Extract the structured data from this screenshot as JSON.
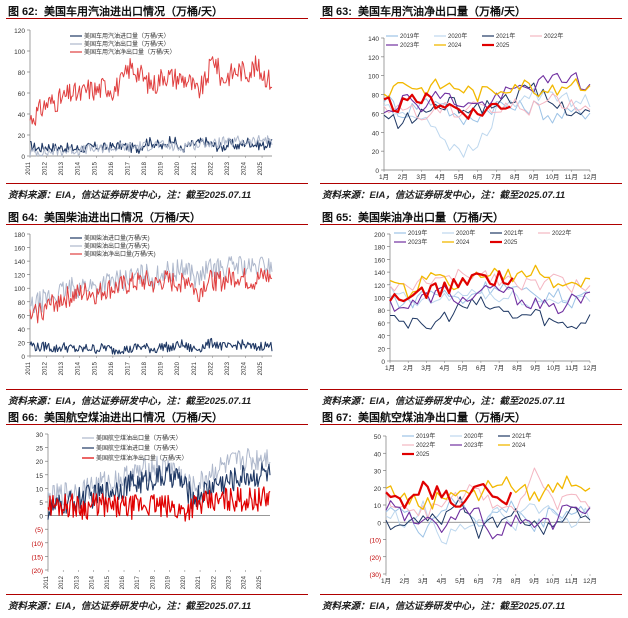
{
  "panels": [
    {
      "id": "p62",
      "title": {
        "num": "图 62:",
        "text": "美国车用汽油进出口情况（万桶/天）"
      },
      "source": "资料来源：EIA，信达证券研发中心，注：截至2025.07.11",
      "chart_data": {
        "type": "line",
        "ylim": [
          0,
          120
        ],
        "yticks": [
          0,
          20,
          40,
          60,
          80,
          100,
          120
        ],
        "xlabels": [
          "2011",
          "2012",
          "2013",
          "2014",
          "2015",
          "2016",
          "2017",
          "2018",
          "2019",
          "2020",
          "2021",
          "2022",
          "2023",
          "2024",
          "2025"
        ],
        "legend_placement": "top-left",
        "series": [
          {
            "name": "美国车用汽油进口量（万桶/天）",
            "color": "#1f3864",
            "width": 1.1,
            "shape": "low",
            "values": [
              10,
              7,
              9,
              8,
              8,
              7,
              7,
              8,
              9,
              8,
              9,
              10,
              8,
              7,
              14,
              12,
              8,
              18,
              6,
              10,
              12,
              14,
              10,
              8,
              12,
              9,
              14,
              11,
              10,
              13
            ]
          },
          {
            "name": "美国车用汽油出口量（万桶/天）",
            "color": "#aeb8cc",
            "width": 1.0,
            "shape": "low",
            "values": [
              3,
              4,
              3,
              5,
              4,
              6,
              5,
              7,
              6,
              8,
              7,
              9,
              8,
              10,
              9,
              11,
              10,
              9,
              7,
              12,
              10,
              13,
              11,
              14,
              12,
              15,
              13,
              14,
              16,
              15
            ]
          },
          {
            "name": "美国车用汽油净出口量（万桶/天）",
            "color": "#e04040",
            "width": 1.0,
            "shape": "noisy",
            "values": [
              35,
              42,
              50,
              52,
              55,
              60,
              58,
              64,
              62,
              67,
              63,
              70,
              85,
              80,
              70,
              68,
              78,
              75,
              74,
              72,
              60,
              70,
              95,
              72,
              78,
              82,
              80,
              85,
              78,
              70
            ]
          }
        ]
      }
    },
    {
      "id": "p63",
      "title": {
        "num": "图 63:",
        "text": "美国车用汽油净出口量（万桶/天）"
      },
      "source": "资料来源：EIA，信达证券研发中心，注：截至2025.07.11",
      "chart_data": {
        "type": "line",
        "ylim": [
          0,
          140
        ],
        "yticks": [
          0,
          20,
          40,
          60,
          80,
          100,
          120,
          140
        ],
        "xlabels": [
          "1月",
          "2月",
          "3月",
          "4月",
          "5月",
          "6月",
          "7月",
          "8月",
          "9月",
          "10月",
          "11月",
          "12月"
        ],
        "legend_placement": "top",
        "series": [
          {
            "name": "2019年",
            "color": "#9dc3e6",
            "width": 1,
            "values": [
              78,
              60,
              72,
              75,
              50,
              58,
              70,
              65,
              68,
              55,
              60,
              62
            ]
          },
          {
            "name": "2020年",
            "color": "#bdd7ee",
            "width": 1,
            "values": [
              70,
              55,
              60,
              40,
              15,
              25,
              60,
              72,
              80,
              85,
              70,
              75
            ]
          },
          {
            "name": "2021年",
            "color": "#1f3864",
            "width": 1,
            "values": [
              55,
              50,
              60,
              70,
              68,
              65,
              72,
              80,
              85,
              70,
              65,
              60
            ]
          },
          {
            "name": "2022年",
            "color": "#f4b6c2",
            "width": 1,
            "values": [
              60,
              70,
              55,
              65,
              62,
              75,
              60,
              70,
              65,
              78,
              70,
              68
            ]
          },
          {
            "name": "2023年",
            "color": "#7030a0",
            "width": 1.1,
            "values": [
              65,
              75,
              70,
              80,
              72,
              68,
              75,
              85,
              90,
              95,
              100,
              85
            ]
          },
          {
            "name": "2024",
            "color": "#f2b800",
            "width": 1.3,
            "values": [
              80,
              95,
              85,
              90,
              88,
              80,
              85,
              92,
              88,
              82,
              95,
              90
            ]
          },
          {
            "name": "2025",
            "color": "#e00000",
            "width": 2.2,
            "values": [
              70,
              68,
              75,
              72,
              65,
              60,
              70
            ]
          }
        ]
      }
    },
    {
      "id": "p64",
      "title": {
        "num": "图 64:",
        "text": "美国柴油进出口情况（万桶/天）"
      },
      "source": "资料来源：EIA，信达证券研发中心，注：截至2025.07.11",
      "chart_data": {
        "type": "line",
        "ylim": [
          0,
          180
        ],
        "yticks": [
          0,
          20,
          40,
          60,
          80,
          100,
          120,
          140,
          160,
          180
        ],
        "xlabels": [
          "2011",
          "2012",
          "2013",
          "2014",
          "2015",
          "2016",
          "2017",
          "2018",
          "2019",
          "2020",
          "2021",
          "2022",
          "2023",
          "2024",
          "2025"
        ],
        "legend_placement": "top-left",
        "series": [
          {
            "name": "美国柴油进口量(万桶/天)",
            "color": "#1f3864",
            "width": 1.1,
            "shape": "low",
            "values": [
              18,
              12,
              15,
              10,
              14,
              11,
              9,
              12,
              10,
              13,
              8,
              11,
              9,
              14,
              12,
              10,
              15,
              11,
              18,
              12,
              10,
              16,
              20,
              14,
              12,
              18,
              15,
              12,
              16,
              14
            ]
          },
          {
            "name": "美国柴油出口量(万桶/天)",
            "color": "#aeb8cc",
            "width": 1.0,
            "shape": "noisy",
            "values": [
              70,
              78,
              85,
              90,
              95,
              100,
              102,
              105,
              100,
              108,
              110,
              112,
              115,
              118,
              120,
              115,
              125,
              122,
              128,
              130,
              110,
              125,
              130,
              128,
              132,
              135,
              130,
              128,
              135,
              132
            ]
          },
          {
            "name": "美国柴油净出口量(万桶/天)",
            "color": "#e04040",
            "width": 1.0,
            "shape": "noisy",
            "values": [
              55,
              65,
              72,
              80,
              85,
              88,
              92,
              95,
              90,
              98,
              100,
              102,
              106,
              108,
              110,
              104,
              112,
              108,
              110,
              115,
              90,
              108,
              112,
              110,
              115,
              118,
              112,
              110,
              118,
              115
            ]
          }
        ]
      }
    },
    {
      "id": "p65",
      "title": {
        "num": "图 65:",
        "text": "美国柴油净出口量（万桶/天）"
      },
      "source": "资料来源：EIA，信达证券研发中心，注：截至2025.07.11",
      "chart_data": {
        "type": "line",
        "ylim": [
          0,
          200
        ],
        "yticks": [
          0,
          20,
          40,
          60,
          80,
          100,
          120,
          140,
          160,
          180,
          200
        ],
        "xlabels": [
          "1月",
          "2月",
          "3月",
          "4月",
          "5月",
          "6月",
          "7月",
          "8月",
          "9月",
          "10月",
          "11月",
          "12月"
        ],
        "legend_placement": "top",
        "series": [
          {
            "name": "2019年",
            "color": "#9dc3e6",
            "width": 1,
            "values": [
              100,
              90,
              110,
              105,
              95,
              115,
              120,
              110,
              100,
              105,
              95,
              110
            ]
          },
          {
            "name": "2020年",
            "color": "#bdd7ee",
            "width": 1,
            "values": [
              110,
              95,
              90,
              100,
              105,
              110,
              95,
              100,
              90,
              95,
              100,
              105
            ]
          },
          {
            "name": "2021年",
            "color": "#1f3864",
            "width": 1,
            "values": [
              80,
              60,
              50,
              70,
              85,
              90,
              80,
              70,
              75,
              60,
              55,
              70
            ]
          },
          {
            "name": "2022年",
            "color": "#f4b6c2",
            "width": 1,
            "values": [
              120,
              110,
              130,
              125,
              135,
              140,
              130,
              125,
              120,
              130,
              115,
              125
            ]
          },
          {
            "name": "2023年",
            "color": "#7030a0",
            "width": 1.1,
            "values": [
              90,
              85,
              100,
              110,
              95,
              105,
              115,
              100,
              90,
              80,
              95,
              100
            ]
          },
          {
            "name": "2024",
            "color": "#f2b800",
            "width": 1.3,
            "values": [
              115,
              110,
              130,
              125,
              120,
              140,
              135,
              130,
              140,
              125,
              120,
              130
            ]
          },
          {
            "name": "2025",
            "color": "#e00000",
            "width": 2.2,
            "values": [
              100,
              95,
              110,
              115,
              120,
              135,
              130
            ]
          }
        ]
      }
    },
    {
      "id": "p66",
      "title": {
        "num": "图 66:",
        "text": "美国航空煤油进出口情况（万桶/天）"
      },
      "source": "资料来源：EIA，信达证券研发中心，注：截至2025.07.11",
      "chart_data": {
        "type": "line",
        "ylim": [
          -20,
          30
        ],
        "yticks": [
          -20,
          -15,
          -10,
          -5,
          0,
          5,
          10,
          15,
          20,
          25,
          30
        ],
        "ytick_labels": [
          "(20)",
          "(15)",
          "(10)",
          "(5)",
          "0",
          "5",
          "10",
          "15",
          "20",
          "25",
          "30"
        ],
        "xlabels": [
          "2011",
          "2012",
          "2013",
          "2014",
          "2015",
          "2016",
          "2017",
          "2018",
          "2019",
          "2020",
          "2021",
          "2022",
          "2023",
          "2024",
          "2025"
        ],
        "legend_placement": "top-left",
        "series": [
          {
            "name": "美国航空煤油出口量（万桶/天）",
            "color": "#aeb8cc",
            "width": 1.0,
            "shape": "noisy",
            "values": [
              6,
              7,
              8,
              9,
              9,
              10,
              11,
              12,
              12,
              13,
              14,
              15,
              16,
              17,
              18,
              17,
              18,
              16,
              12,
              10,
              12,
              15,
              17,
              18,
              19,
              20,
              21,
              20,
              22,
              22
            ]
          },
          {
            "name": "美国航空煤油进口量（万桶/天）",
            "color": "#1f3864",
            "width": 1.1,
            "shape": "noisy",
            "values": [
              2,
              3,
              4,
              5,
              6,
              7,
              7,
              8,
              9,
              10,
              11,
              12,
              12,
              13,
              14,
              14,
              15,
              14,
              10,
              6,
              8,
              10,
              12,
              12,
              13,
              14,
              15,
              14,
              16,
              15
            ]
          },
          {
            "name": "美国航空煤油净出口量（万桶/天）",
            "color": "#e00000",
            "width": 1.2,
            "shape": "noisy",
            "values": [
              4,
              4,
              4,
              4,
              3,
              3,
              4,
              4,
              3,
              3,
              3,
              3,
              4,
              4,
              4,
              3,
              3,
              2,
              2,
              4,
              4,
              5,
              5,
              6,
              6,
              6,
              6,
              6,
              6,
              7
            ]
          }
        ]
      }
    },
    {
      "id": "p67",
      "title": {
        "num": "图 67:",
        "text": "美国航空煤油净出口量（万桶/天）"
      },
      "source": "资料来源：EIA，信达证券研发中心，注：截至2025.07.11",
      "chart_data": {
        "type": "line",
        "ylim": [
          -30,
          50
        ],
        "yticks": [
          -30,
          -20,
          -10,
          0,
          10,
          20,
          30,
          40,
          50
        ],
        "ytick_labels": [
          "(30)",
          "(20)",
          "(10)",
          "0",
          "10",
          "20",
          "30",
          "40",
          "50"
        ],
        "xlabels": [
          "1月",
          "2月",
          "3月",
          "4月",
          "5月",
          "6月",
          "7月",
          "8月",
          "9月",
          "10月",
          "11月",
          "12月"
        ],
        "legend_placement": "top",
        "series": [
          {
            "name": "2019年",
            "color": "#9dc3e6",
            "width": 1,
            "values": [
              10,
              5,
              -5,
              8,
              12,
              0,
              5,
              10,
              -5,
              8,
              5,
              10
            ]
          },
          {
            "name": "2020年",
            "color": "#bdd7ee",
            "width": 1,
            "values": [
              5,
              0,
              10,
              -10,
              -5,
              0,
              5,
              0,
              10,
              5,
              0,
              5
            ]
          },
          {
            "name": "2021年",
            "color": "#1f3864",
            "width": 1,
            "values": [
              0,
              -5,
              5,
              0,
              10,
              -5,
              0,
              5,
              0,
              -5,
              5,
              0
            ]
          },
          {
            "name": "2022年",
            "color": "#f4b6c2",
            "width": 1,
            "values": [
              15,
              10,
              5,
              10,
              15,
              20,
              10,
              5,
              30,
              10,
              15,
              10
            ]
          },
          {
            "name": "2023年",
            "color": "#7030a0",
            "width": 1.1,
            "values": [
              10,
              5,
              0,
              -5,
              10,
              5,
              -10,
              5,
              -5,
              0,
              10,
              5
            ]
          },
          {
            "name": "2024",
            "color": "#f2b800",
            "width": 1.3,
            "values": [
              20,
              15,
              10,
              15,
              20,
              15,
              25,
              20,
              15,
              20,
              25,
              20
            ]
          },
          {
            "name": "2025",
            "color": "#e00000",
            "width": 2.2,
            "values": [
              15,
              10,
              20,
              15,
              10,
              20,
              15
            ]
          }
        ]
      }
    }
  ]
}
